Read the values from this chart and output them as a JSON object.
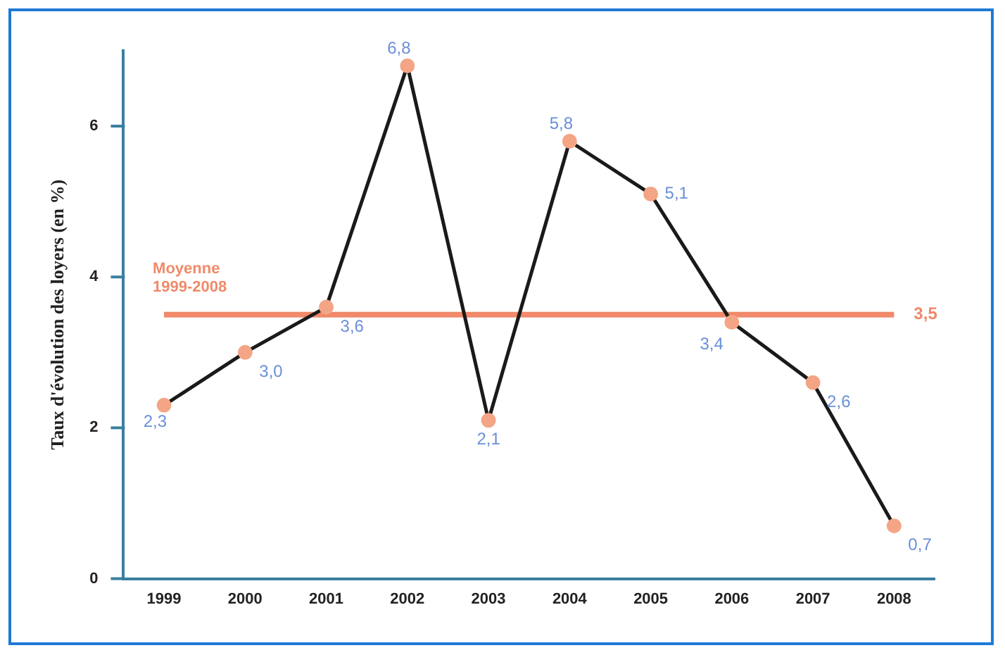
{
  "chart_data": {
    "type": "line",
    "ylabel": "Taux d'évolution des loyers (en %)",
    "categories": [
      "1999",
      "2000",
      "2001",
      "2002",
      "2003",
      "2004",
      "2005",
      "2006",
      "2007",
      "2008"
    ],
    "series": [
      {
        "color": "#1a1a1a",
        "values": [
          2.3,
          3.0,
          3.6,
          6.8,
          2.1,
          5.8,
          5.1,
          3.4,
          2.6,
          0.7
        ],
        "value_labels": [
          "2,3",
          "3,0",
          "3,6",
          "6,8",
          "2,1",
          "5,8",
          "5,1",
          "3,4",
          "2,6",
          "0,7"
        ]
      }
    ],
    "ylim": [
      0,
      7
    ],
    "yticks": [
      0,
      2,
      4,
      6
    ],
    "ref_lines": [
      {
        "axis": "y",
        "value": 3.5,
        "label": "3,5",
        "color": "#f08a6a"
      }
    ],
    "annotations": [
      "Moyenne 1999-2008"
    ],
    "marker": "circle",
    "grid": false,
    "legend": false
  }
}
